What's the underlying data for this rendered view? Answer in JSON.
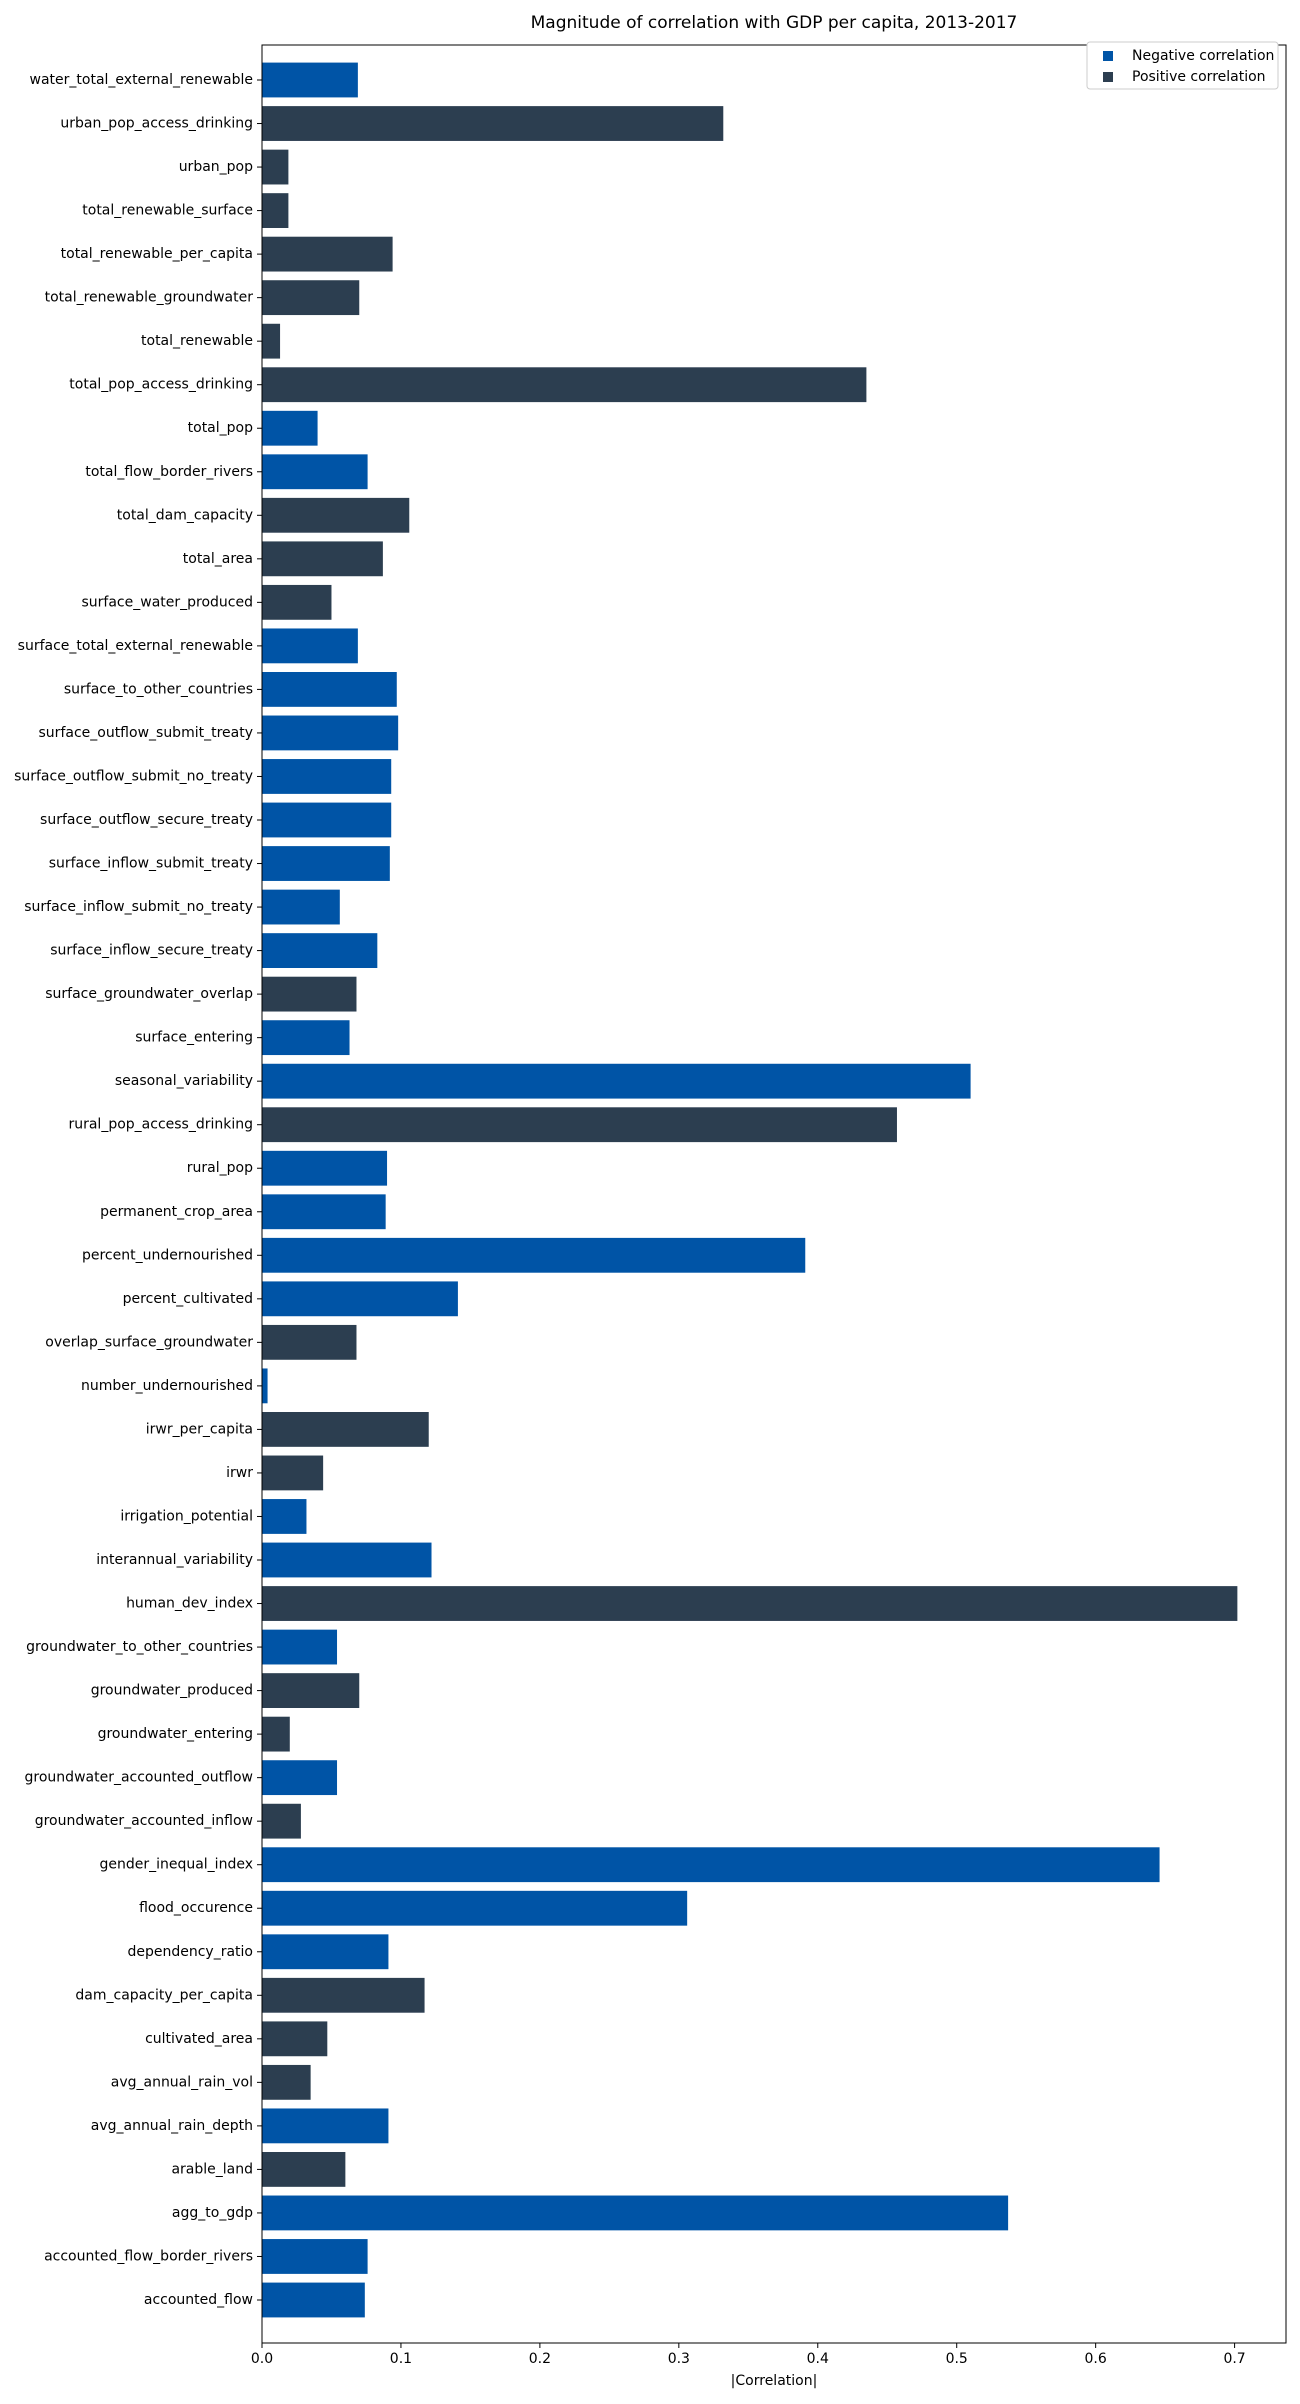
{
  "chart_data": {
    "type": "bar",
    "orientation": "horizontal",
    "title": "Magnitude of correlation with GDP per capita, 2013-2017",
    "xlabel": "|Correlation|",
    "ylabel": "",
    "xlim": [
      0,
      0.737
    ],
    "xticks": [
      0.0,
      0.1,
      0.2,
      0.3,
      0.4,
      0.5,
      0.6,
      0.7
    ],
    "xtick_labels": [
      "0.0",
      "0.1",
      "0.2",
      "0.3",
      "0.4",
      "0.5",
      "0.6",
      "0.7"
    ],
    "grid": false,
    "legend_position": "top-right",
    "colors": {
      "negative": "#0054a6",
      "positive": "#2c3e50"
    },
    "legend": [
      {
        "label": "Negative correlation",
        "sign": "negative"
      },
      {
        "label": "Positive correlation",
        "sign": "positive"
      }
    ],
    "bars": [
      {
        "label": "water_total_external_renewable",
        "value": 0.069,
        "sign": "negative"
      },
      {
        "label": "urban_pop_access_drinking",
        "value": 0.332,
        "sign": "positive"
      },
      {
        "label": "urban_pop",
        "value": 0.019,
        "sign": "positive"
      },
      {
        "label": "total_renewable_surface",
        "value": 0.019,
        "sign": "positive"
      },
      {
        "label": "total_renewable_per_capita",
        "value": 0.094,
        "sign": "positive"
      },
      {
        "label": "total_renewable_groundwater",
        "value": 0.07,
        "sign": "positive"
      },
      {
        "label": "total_renewable",
        "value": 0.013,
        "sign": "positive"
      },
      {
        "label": "total_pop_access_drinking",
        "value": 0.435,
        "sign": "positive"
      },
      {
        "label": "total_pop",
        "value": 0.04,
        "sign": "negative"
      },
      {
        "label": "total_flow_border_rivers",
        "value": 0.076,
        "sign": "negative"
      },
      {
        "label": "total_dam_capacity",
        "value": 0.106,
        "sign": "positive"
      },
      {
        "label": "total_area",
        "value": 0.087,
        "sign": "positive"
      },
      {
        "label": "surface_water_produced",
        "value": 0.05,
        "sign": "positive"
      },
      {
        "label": "surface_total_external_renewable",
        "value": 0.069,
        "sign": "negative"
      },
      {
        "label": "surface_to_other_countries",
        "value": 0.097,
        "sign": "negative"
      },
      {
        "label": "surface_outflow_submit_treaty",
        "value": 0.098,
        "sign": "negative"
      },
      {
        "label": "surface_outflow_submit_no_treaty",
        "value": 0.093,
        "sign": "negative"
      },
      {
        "label": "surface_outflow_secure_treaty",
        "value": 0.093,
        "sign": "negative"
      },
      {
        "label": "surface_inflow_submit_treaty",
        "value": 0.092,
        "sign": "negative"
      },
      {
        "label": "surface_inflow_submit_no_treaty",
        "value": 0.056,
        "sign": "negative"
      },
      {
        "label": "surface_inflow_secure_treaty",
        "value": 0.083,
        "sign": "negative"
      },
      {
        "label": "surface_groundwater_overlap",
        "value": 0.068,
        "sign": "positive"
      },
      {
        "label": "surface_entering",
        "value": 0.063,
        "sign": "negative"
      },
      {
        "label": "seasonal_variability",
        "value": 0.51,
        "sign": "negative"
      },
      {
        "label": "rural_pop_access_drinking",
        "value": 0.457,
        "sign": "positive"
      },
      {
        "label": "rural_pop",
        "value": 0.09,
        "sign": "negative"
      },
      {
        "label": "permanent_crop_area",
        "value": 0.089,
        "sign": "negative"
      },
      {
        "label": "percent_undernourished",
        "value": 0.391,
        "sign": "negative"
      },
      {
        "label": "percent_cultivated",
        "value": 0.141,
        "sign": "negative"
      },
      {
        "label": "overlap_surface_groundwater",
        "value": 0.068,
        "sign": "positive"
      },
      {
        "label": "number_undernourished",
        "value": 0.004,
        "sign": "negative"
      },
      {
        "label": "irwr_per_capita",
        "value": 0.12,
        "sign": "positive"
      },
      {
        "label": "irwr",
        "value": 0.044,
        "sign": "positive"
      },
      {
        "label": "irrigation_potential",
        "value": 0.032,
        "sign": "negative"
      },
      {
        "label": "interannual_variability",
        "value": 0.122,
        "sign": "negative"
      },
      {
        "label": "human_dev_index",
        "value": 0.702,
        "sign": "positive"
      },
      {
        "label": "groundwater_to_other_countries",
        "value": 0.054,
        "sign": "negative"
      },
      {
        "label": "groundwater_produced",
        "value": 0.07,
        "sign": "positive"
      },
      {
        "label": "groundwater_entering",
        "value": 0.02,
        "sign": "positive"
      },
      {
        "label": "groundwater_accounted_outflow",
        "value": 0.054,
        "sign": "negative"
      },
      {
        "label": "groundwater_accounted_inflow",
        "value": 0.028,
        "sign": "positive"
      },
      {
        "label": "gender_inequal_index",
        "value": 0.646,
        "sign": "negative"
      },
      {
        "label": "flood_occurence",
        "value": 0.306,
        "sign": "negative"
      },
      {
        "label": "dependency_ratio",
        "value": 0.091,
        "sign": "negative"
      },
      {
        "label": "dam_capacity_per_capita",
        "value": 0.117,
        "sign": "positive"
      },
      {
        "label": "cultivated_area",
        "value": 0.047,
        "sign": "positive"
      },
      {
        "label": "avg_annual_rain_vol",
        "value": 0.035,
        "sign": "positive"
      },
      {
        "label": "avg_annual_rain_depth",
        "value": 0.091,
        "sign": "negative"
      },
      {
        "label": "arable_land",
        "value": 0.06,
        "sign": "positive"
      },
      {
        "label": "agg_to_gdp",
        "value": 0.537,
        "sign": "negative"
      },
      {
        "label": "accounted_flow_border_rivers",
        "value": 0.076,
        "sign": "negative"
      },
      {
        "label": "accounted_flow",
        "value": 0.074,
        "sign": "negative"
      }
    ]
  }
}
